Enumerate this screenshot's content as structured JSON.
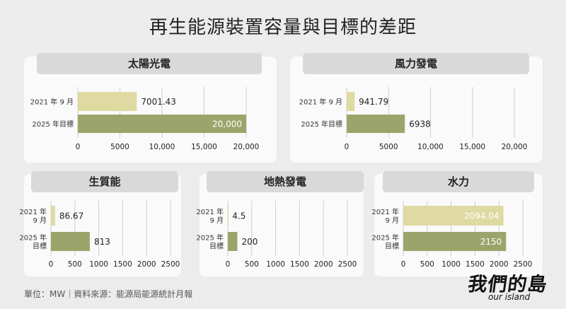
{
  "title": "再生能源裝置容量與目標的差距",
  "footer": "單位：MW｜資料來源：能源局能源統計月報",
  "logo": {
    "main": "我們的島",
    "sub": "our island"
  },
  "colors": {
    "current": "#dfd9a2",
    "target": "#9ba56b",
    "grid": "#cfcfcf",
    "pill": "#d9d9d9"
  },
  "chart_data": [
    {
      "type": "bar",
      "orientation": "horizontal",
      "title": "太陽光電",
      "categories": [
        "2021 年 9 月",
        "2025 年目標"
      ],
      "values": [
        7001.43,
        20000
      ],
      "value_labels": [
        "7001.43",
        "20,000"
      ],
      "xlim": [
        0,
        20000
      ],
      "xticks": [
        0,
        5000,
        10000,
        15000,
        20000
      ],
      "xtick_labels": [
        "0",
        "5000",
        "10,000",
        "15,000",
        "20,000"
      ]
    },
    {
      "type": "bar",
      "orientation": "horizontal",
      "title": "風力發電",
      "categories": [
        "2021 年 9 月",
        "2025 年目標"
      ],
      "values": [
        941.79,
        6938
      ],
      "value_labels": [
        "941.79",
        "6938"
      ],
      "xlim": [
        0,
        20000
      ],
      "xticks": [
        0,
        5000,
        10000,
        15000,
        20000
      ],
      "xtick_labels": [
        "0",
        "5000",
        "10,000",
        "15,000",
        "20,000"
      ]
    },
    {
      "type": "bar",
      "orientation": "horizontal",
      "title": "生質能",
      "categories": [
        "2021 年\n9 月",
        "2025 年\n目標"
      ],
      "values": [
        86.67,
        813
      ],
      "value_labels": [
        "86.67",
        "813"
      ],
      "xlim": [
        0,
        2500
      ],
      "xticks": [
        0,
        500,
        1000,
        1500,
        2000,
        2500
      ],
      "xtick_labels": [
        "0",
        "500",
        "1000",
        "1500",
        "2000",
        "2500"
      ]
    },
    {
      "type": "bar",
      "orientation": "horizontal",
      "title": "地熱發電",
      "categories": [
        "2021 年\n9 月",
        "2025 年\n目標"
      ],
      "values": [
        4.5,
        200
      ],
      "value_labels": [
        "4.5",
        "200"
      ],
      "xlim": [
        0,
        2500
      ],
      "xticks": [
        0,
        500,
        1000,
        1500,
        2000,
        2500
      ],
      "xtick_labels": [
        "0",
        "500",
        "1000",
        "1500",
        "2000",
        "2500"
      ]
    },
    {
      "type": "bar",
      "orientation": "horizontal",
      "title": "水力",
      "categories": [
        "2021 年\n9 月",
        "2025 年\n目標"
      ],
      "values": [
        2094.04,
        2150
      ],
      "value_labels": [
        "2094.04",
        "2150"
      ],
      "xlim": [
        0,
        2500
      ],
      "xticks": [
        0,
        500,
        1000,
        1500,
        2000,
        2500
      ],
      "xtick_labels": [
        "0",
        "500",
        "1000",
        "1500",
        "2000",
        "2500"
      ]
    }
  ]
}
